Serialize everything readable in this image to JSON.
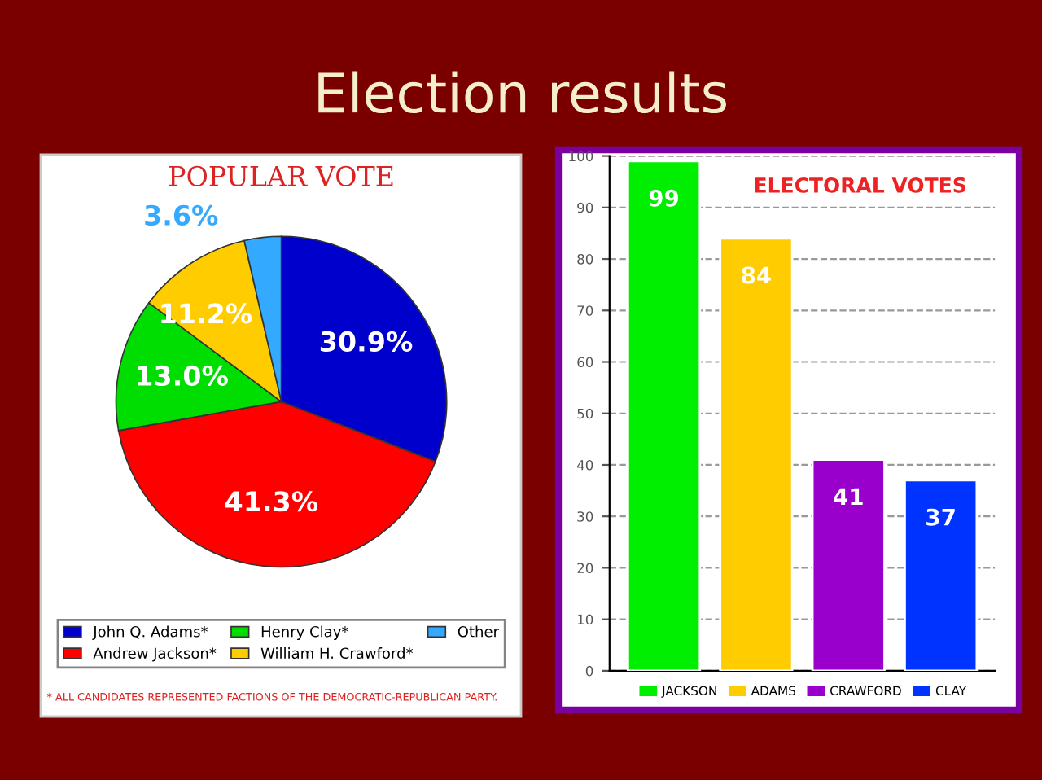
{
  "chart_data": [
    {
      "type": "pie",
      "title": "POPULAR VOTE",
      "categories": [
        "John Q. Adams*",
        "Andrew Jackson*",
        "Henry Clay*",
        "William H. Crawford*",
        "Other"
      ],
      "values": [
        30.9,
        41.3,
        13.0,
        11.2,
        3.6
      ],
      "colors": [
        "#0000cc",
        "#ff0000",
        "#00dd00",
        "#ffcc00",
        "#33aaff"
      ],
      "value_labels": [
        "30.9%",
        "41.3%",
        "13.0%",
        "11.2%",
        "3.6%"
      ],
      "legend": "bottom",
      "annotations": [
        "Election results",
        "* ALL CANDIDATES REPRESENTED FACTIONS OF THE DEMOCRATIC-REPUBLICAN PARTY."
      ]
    },
    {
      "type": "bar",
      "title": "ELECTORAL VOTES",
      "categories": [
        null
      ],
      "series": [
        {
          "name": "JACKSON",
          "color": "#00ee00",
          "values": [
            99
          ]
        },
        {
          "name": "ADAMS",
          "color": "#ffcc00",
          "values": [
            84
          ]
        },
        {
          "name": "CRAWFORD",
          "color": "#9900cc",
          "values": [
            41
          ]
        },
        {
          "name": "CLAY",
          "color": "#0033ff",
          "values": [
            37
          ]
        }
      ],
      "data_labels": true,
      "ylim": [
        0,
        100
      ],
      "yticks": [
        0,
        10,
        20,
        30,
        40,
        50,
        60,
        70,
        80,
        90,
        100
      ],
      "grid": "y",
      "legend": "bottom",
      "tick_labels": "y"
    }
  ]
}
